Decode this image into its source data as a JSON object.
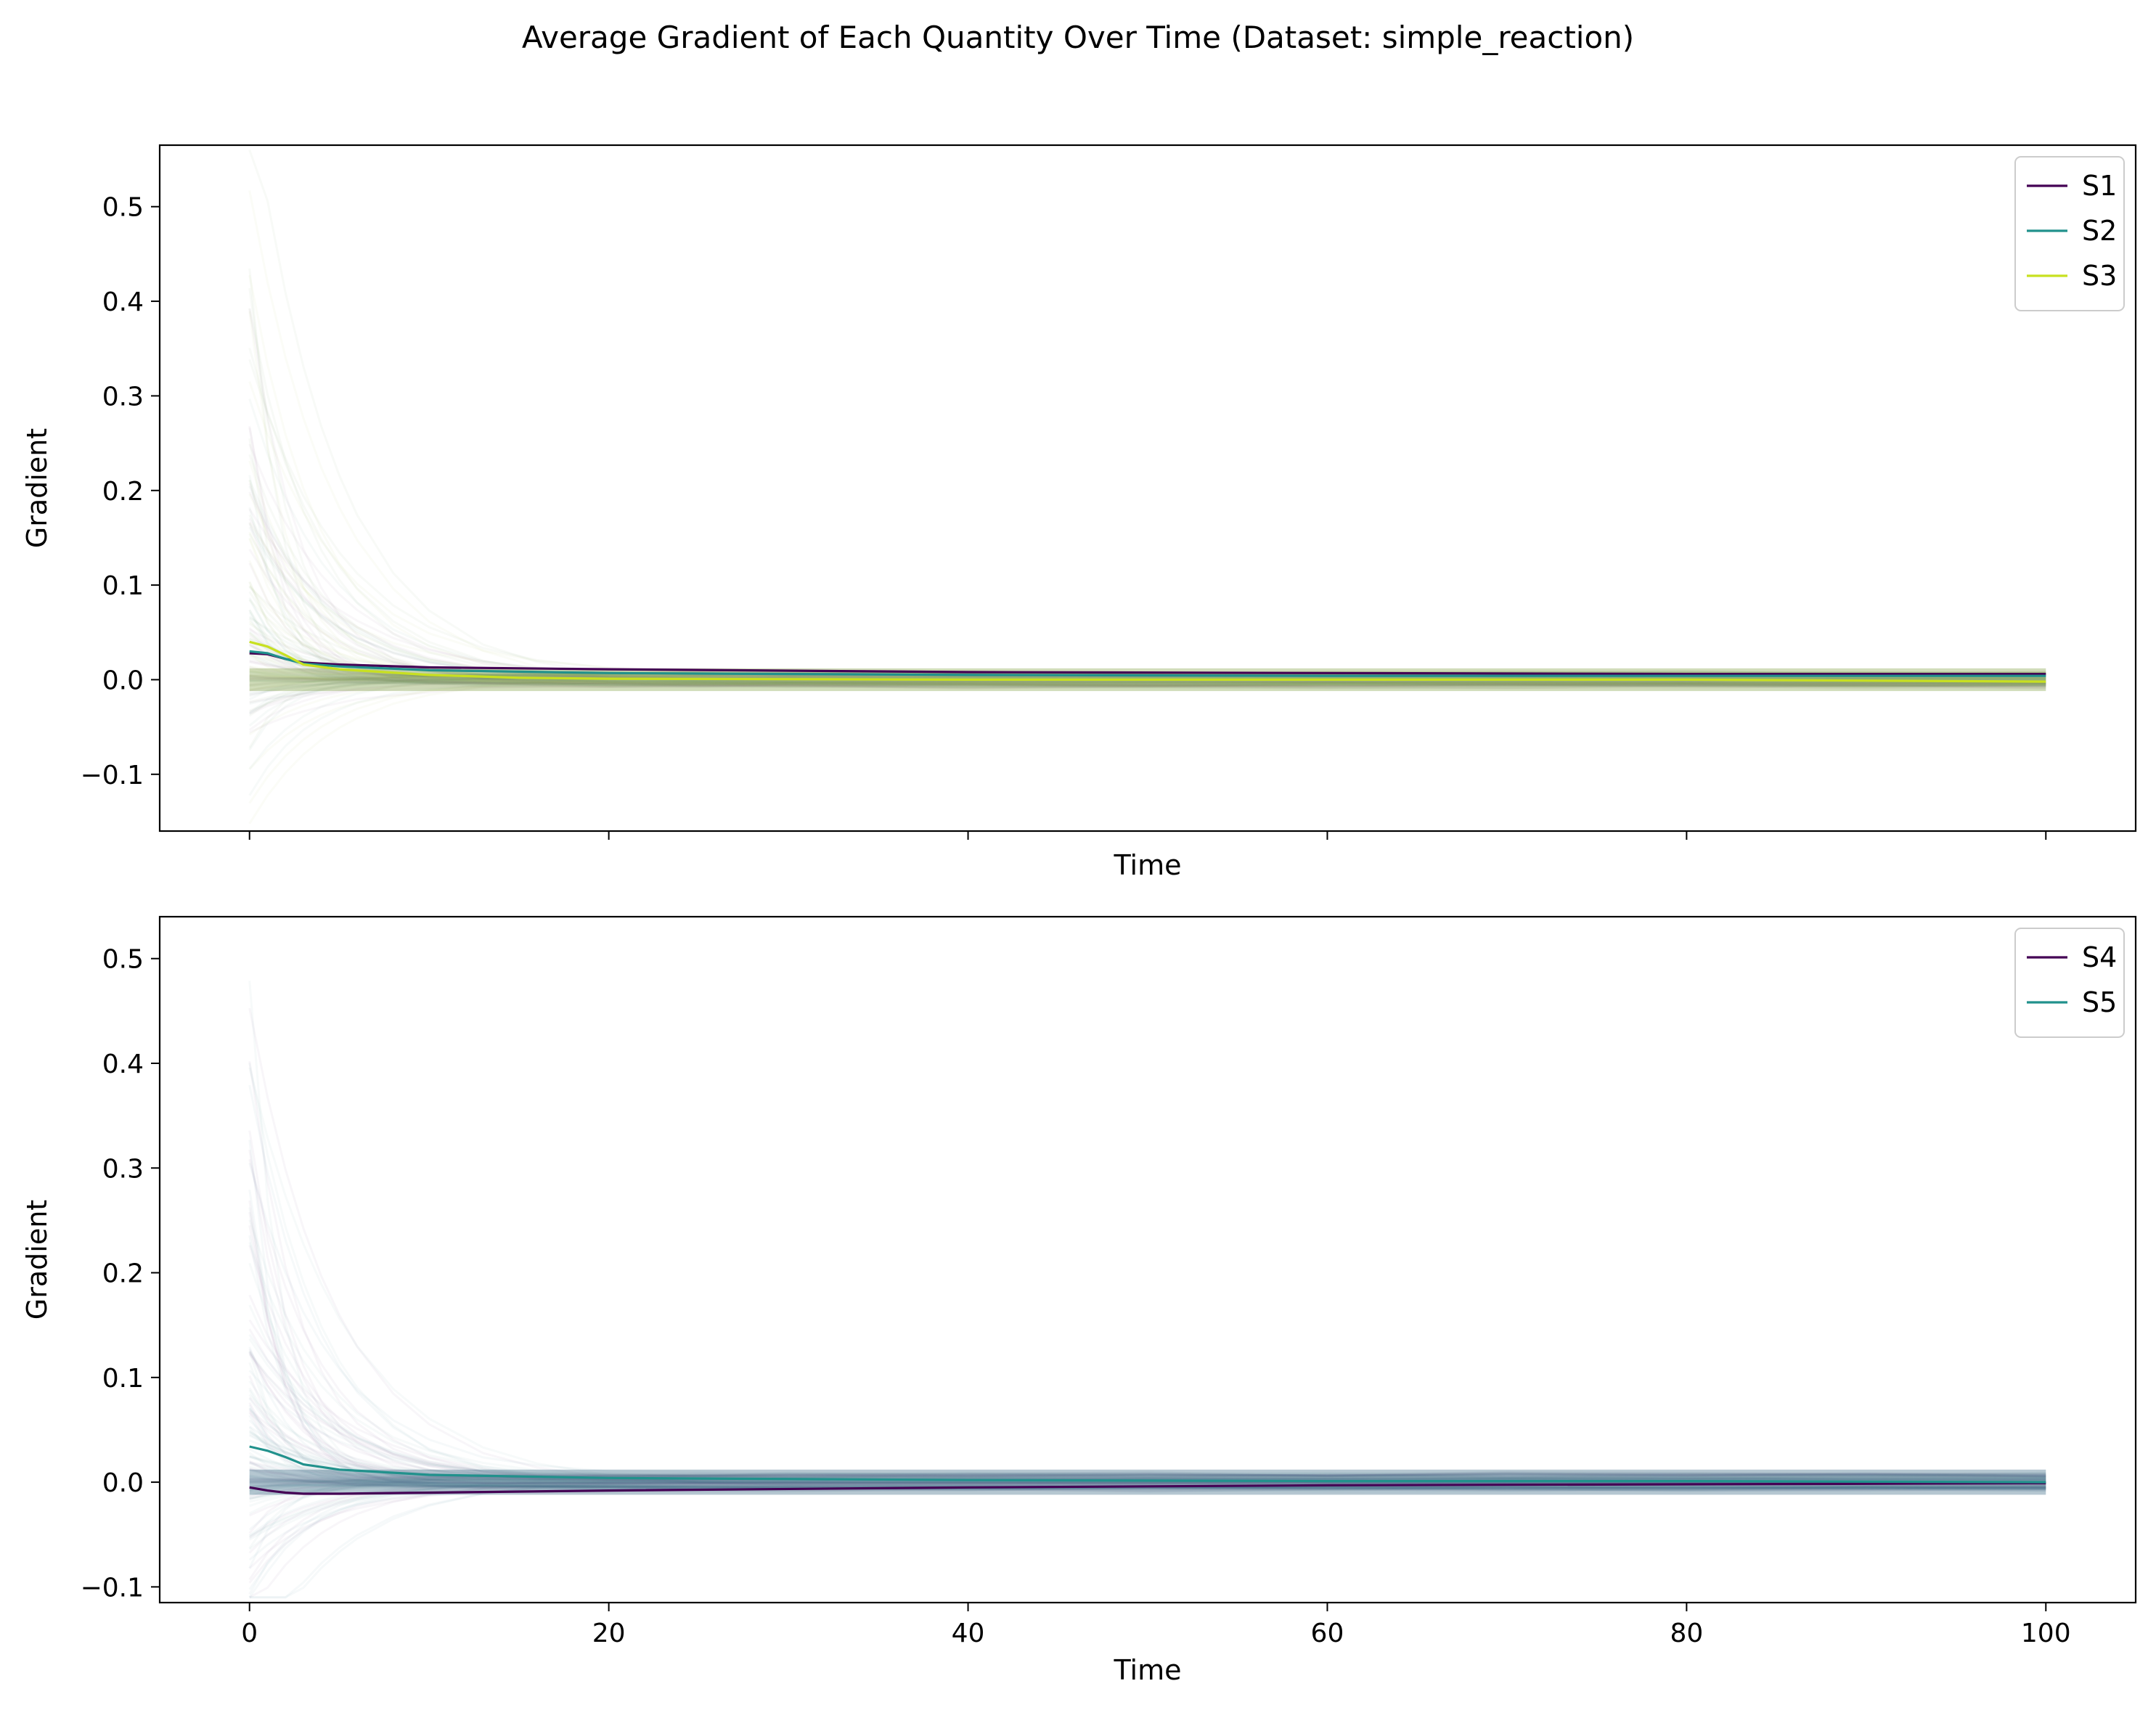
{
  "chart_data": [
    {
      "type": "line",
      "suptitle": "Average Gradient of Each Quantity Over Time (Dataset: simple_reaction)",
      "xlabel": "Time",
      "ylabel": "Gradient",
      "xlim": [
        -5,
        105
      ],
      "ylim": [
        -0.16,
        0.565
      ],
      "x_ticks": [
        0,
        20,
        40,
        60,
        80,
        100
      ],
      "x_tick_labels_shown": false,
      "y_ticks": [
        -0.1,
        0.0,
        0.1,
        0.2,
        0.3,
        0.4,
        0.5
      ],
      "y_tick_labels": [
        "−0.1",
        "0.0",
        "0.1",
        "0.2",
        "0.3",
        "0.4",
        "0.5"
      ],
      "legend_position": "top-right",
      "grid": false,
      "series": [
        {
          "name": "S1",
          "color": "#440154",
          "x": [
            0,
            1,
            2,
            3,
            5,
            10,
            20,
            40,
            60,
            80,
            100
          ],
          "y": [
            0.028,
            0.027,
            0.022,
            0.018,
            0.016,
            0.013,
            0.011,
            0.008,
            0.007,
            0.006,
            0.006
          ]
        },
        {
          "name": "S2",
          "color": "#21918c",
          "x": [
            0,
            1,
            2,
            3,
            5,
            10,
            20,
            40,
            60,
            80,
            100
          ],
          "y": [
            0.03,
            0.028,
            0.022,
            0.017,
            0.014,
            0.01,
            0.007,
            0.005,
            0.004,
            0.004,
            0.004
          ]
        },
        {
          "name": "S3",
          "color": "#c8e020",
          "x": [
            0,
            1,
            2,
            3,
            5,
            10,
            15,
            20,
            40,
            60,
            80,
            100
          ],
          "y": [
            0.04,
            0.035,
            0.026,
            0.016,
            0.011,
            0.005,
            0.002,
            0.001,
            0.0,
            0.0,
            0.0,
            -0.002
          ]
        }
      ],
      "envelope_color": "#7a9a3a"
    },
    {
      "type": "line",
      "xlabel": "Time",
      "ylabel": "Gradient",
      "xlim": [
        -5,
        105
      ],
      "ylim": [
        -0.115,
        0.54
      ],
      "x_ticks": [
        0,
        20,
        40,
        60,
        80,
        100
      ],
      "x_tick_labels": [
        "0",
        "20",
        "40",
        "60",
        "80",
        "100"
      ],
      "y_ticks": [
        -0.1,
        0.0,
        0.1,
        0.2,
        0.3,
        0.4,
        0.5
      ],
      "y_tick_labels": [
        "−0.1",
        "0.0",
        "0.1",
        "0.2",
        "0.3",
        "0.4",
        "0.5"
      ],
      "legend_position": "top-right",
      "grid": false,
      "series": [
        {
          "name": "S4",
          "color": "#440154",
          "x": [
            0,
            1,
            2,
            3,
            5,
            10,
            20,
            40,
            60,
            80,
            100
          ],
          "y": [
            -0.005,
            -0.008,
            -0.01,
            -0.011,
            -0.011,
            -0.01,
            -0.008,
            -0.005,
            -0.003,
            -0.002,
            -0.001
          ]
        },
        {
          "name": "S5",
          "color": "#21918c",
          "x": [
            0,
            1,
            2,
            3,
            5,
            10,
            20,
            40,
            60,
            80,
            100
          ],
          "y": [
            0.034,
            0.03,
            0.024,
            0.017,
            0.012,
            0.007,
            0.004,
            0.002,
            0.001,
            0.001,
            0.0
          ]
        }
      ],
      "envelope_color": "#2a5f7a"
    }
  ]
}
